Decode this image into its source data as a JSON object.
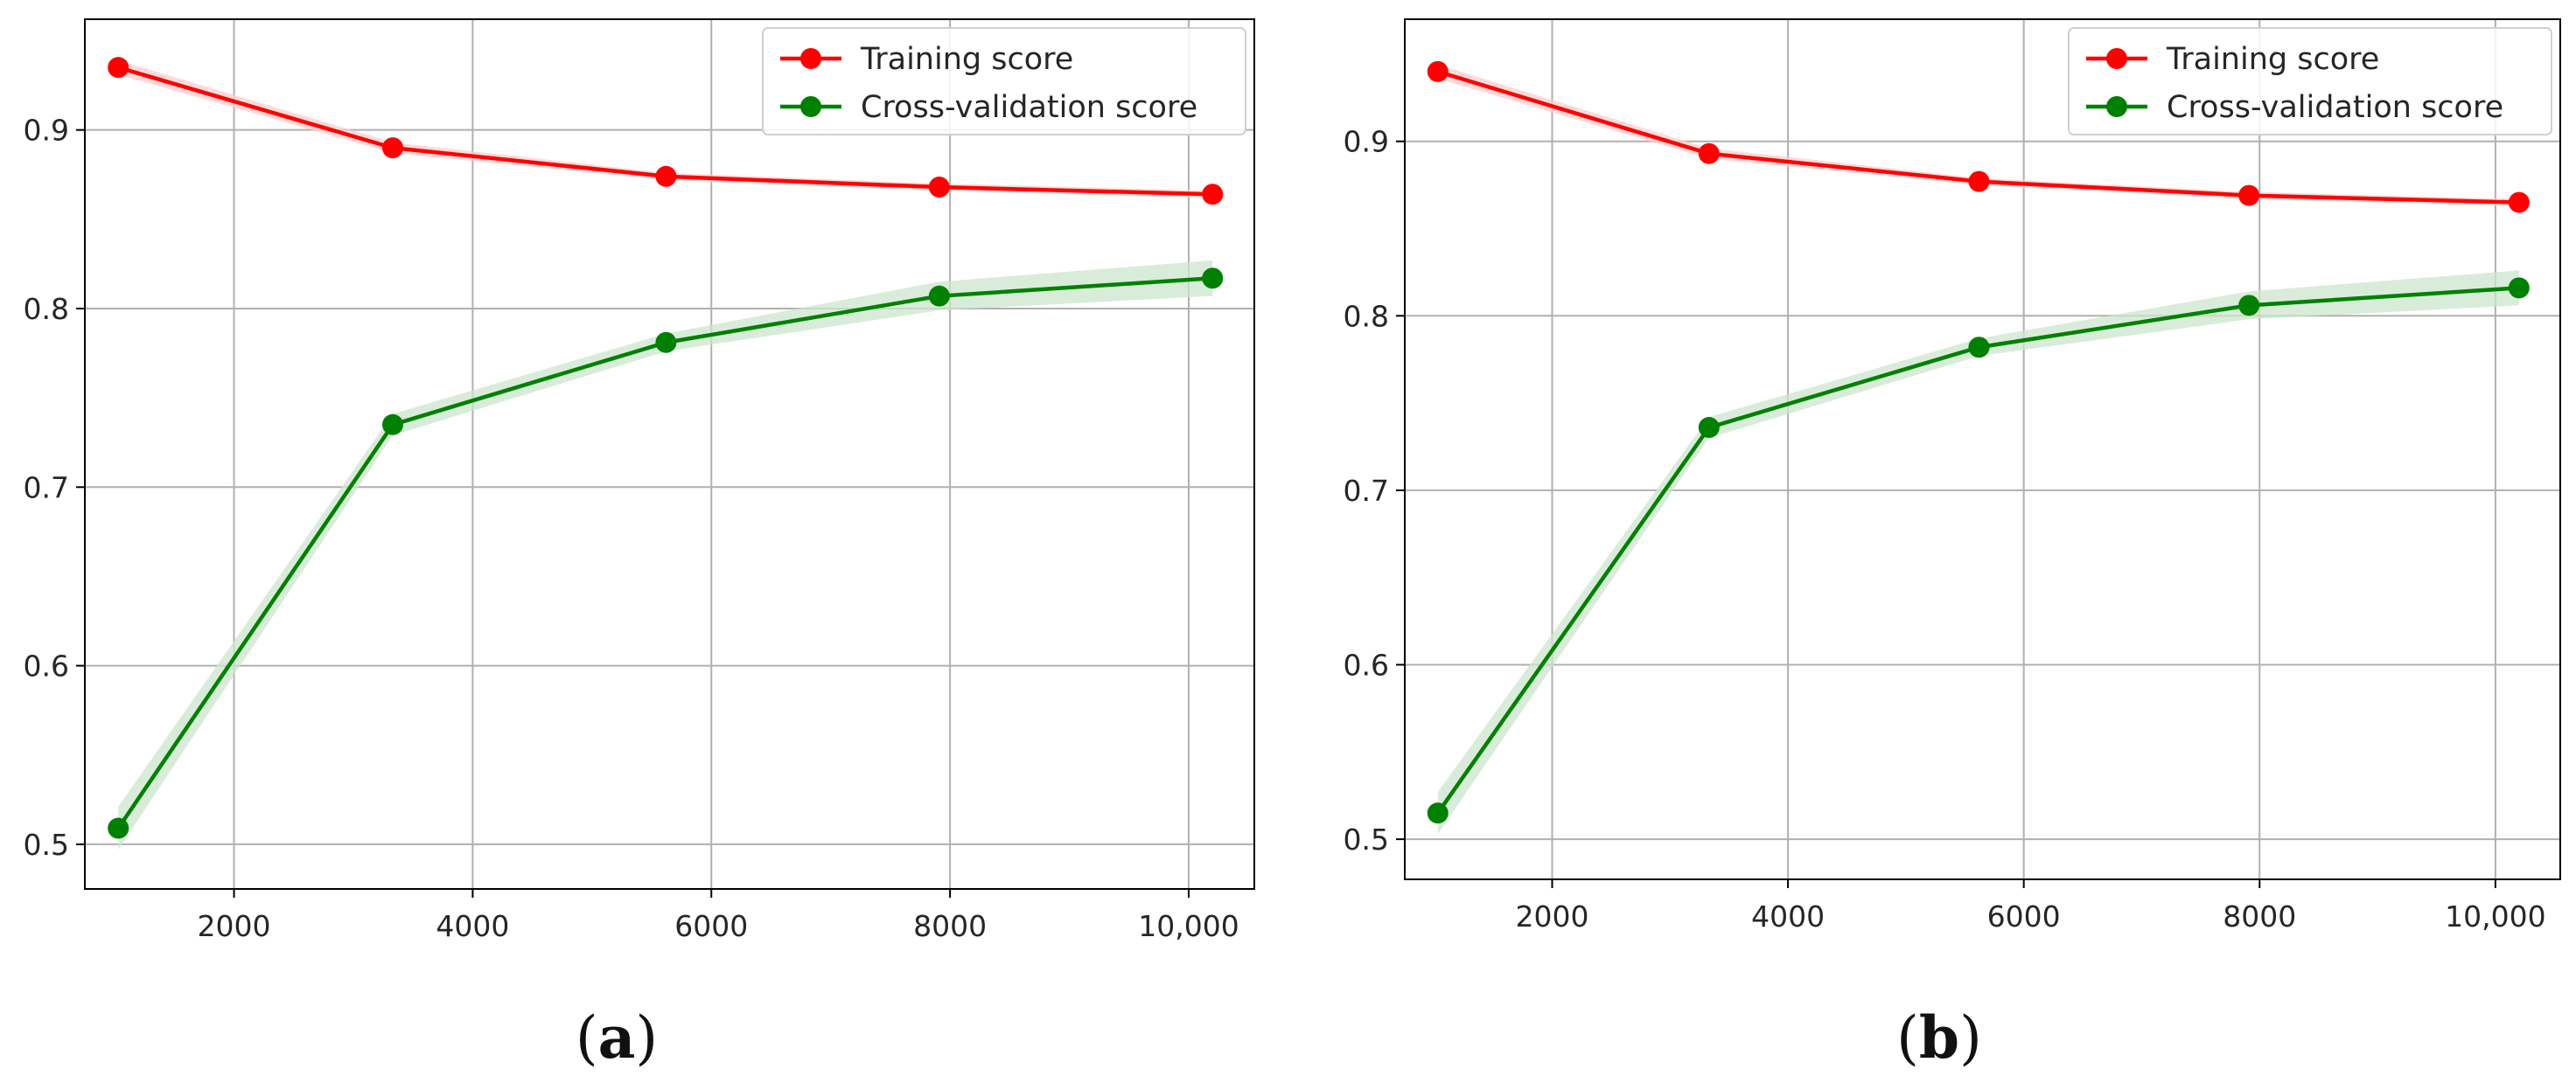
{
  "colors": {
    "training": "#ff0000",
    "cross_validation": "#008000",
    "training_band": "#ffcccc",
    "cross_validation_band": "#cce6cc",
    "grid": "#b0b0b0",
    "axes": "#000000"
  },
  "chart_data": [
    {
      "type": "line",
      "panel_label": "a",
      "x_tick_labels": [
        "2000",
        "4000",
        "6000",
        "8000",
        "10,000"
      ],
      "y_tick_labels": [
        "0.5",
        "0.6",
        "0.7",
        "0.8",
        "0.9"
      ],
      "xlim": [
        750,
        10550
      ],
      "ylim": [
        0.475,
        0.962
      ],
      "grid": true,
      "legend_position": "top-right",
      "x": [
        1030,
        3330,
        5620,
        7910,
        10200
      ],
      "series": [
        {
          "name": "Training score",
          "color_key": "training",
          "values": [
            0.935,
            0.89,
            0.874,
            0.868,
            0.864
          ],
          "std": [
            0.004,
            0.003,
            0.002,
            0.002,
            0.002
          ]
        },
        {
          "name": "Cross-validation score",
          "color_key": "cross_validation",
          "values": [
            0.509,
            0.735,
            0.781,
            0.807,
            0.817
          ],
          "std": [
            0.012,
            0.006,
            0.005,
            0.008,
            0.01
          ]
        }
      ]
    },
    {
      "type": "line",
      "panel_label": "b",
      "x_tick_labels": [
        "2000",
        "4000",
        "6000",
        "8000",
        "10,000"
      ],
      "y_tick_labels": [
        "0.5",
        "0.6",
        "0.7",
        "0.8",
        "0.9"
      ],
      "xlim": [
        750,
        10550
      ],
      "ylim": [
        0.477,
        0.97
      ],
      "grid": true,
      "legend_position": "top-right",
      "x": [
        1030,
        3330,
        5620,
        7910,
        10200
      ],
      "series": [
        {
          "name": "Training score",
          "color_key": "training",
          "values": [
            0.94,
            0.893,
            0.877,
            0.869,
            0.865
          ],
          "std": [
            0.004,
            0.003,
            0.002,
            0.002,
            0.002
          ]
        },
        {
          "name": "Cross-validation score",
          "color_key": "cross_validation",
          "values": [
            0.515,
            0.736,
            0.782,
            0.806,
            0.816
          ],
          "std": [
            0.012,
            0.006,
            0.005,
            0.008,
            0.01
          ]
        }
      ]
    }
  ]
}
